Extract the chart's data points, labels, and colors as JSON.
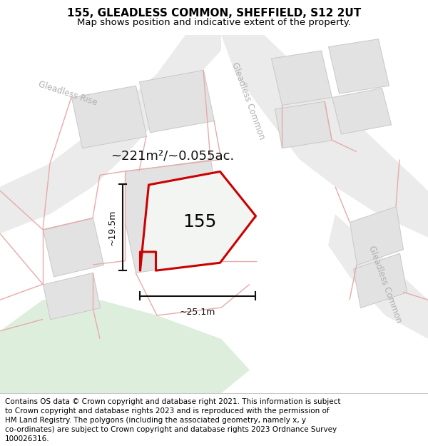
{
  "title": "155, GLEADLESS COMMON, SHEFFIELD, S12 2UT",
  "subtitle": "Map shows position and indicative extent of the property.",
  "footer_lines": [
    "Contains OS data © Crown copyright and database right 2021. This information is subject",
    "to Crown copyright and database rights 2023 and is reproduced with the permission of",
    "HM Land Registry. The polygons (including the associated geometry, namely x, y",
    "co-ordinates) are subject to Crown copyright and database rights 2023 Ordnance Survey",
    "100026316."
  ],
  "bg_color": "#f7f7f7",
  "road_fill": "#ebebeb",
  "building_fill": "#e2e2e2",
  "building_edge": "#c8c8c8",
  "pink_line": "#e8aaaa",
  "green_fill": "#deeedd",
  "property_fill": "#f2f5f2",
  "property_edge": "#cc0000",
  "dim_color": "#111111",
  "label_color": "#111111",
  "street_color": "#b0b0b0",
  "property_label": "155",
  "area_label": "~221m²/~0.055ac.",
  "dim_v": "~19.5m",
  "dim_h": "~25.1m",
  "title_fontsize": 11,
  "subtitle_fontsize": 9.5,
  "footer_fontsize": 7.5,
  "map_label_fontsize": 8.5,
  "area_fontsize": 13,
  "property_num_fontsize": 18,
  "dim_fontsize": 9
}
